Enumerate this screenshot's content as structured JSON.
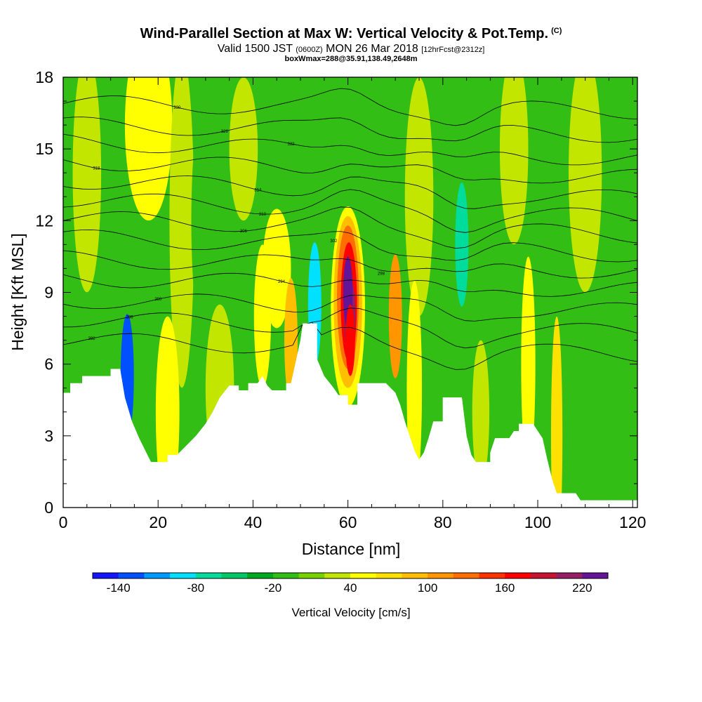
{
  "header": {
    "title": "Wind-Parallel Section at Max W: Vertical Velocity & Pot.Temp.",
    "title_mark": "(C)",
    "subtitle_a": "Valid 1500 JST",
    "subtitle_b": "(0600Z)",
    "subtitle_c": "MON 26 Mar 2018",
    "subtitle_d": "[12hrFcst@2312z]",
    "info": "boxWmax=288@35.91,138.49,2648m"
  },
  "chart_data": {
    "type": "heatmap",
    "xlabel": "Distance [nm]",
    "ylabel": "Height [Kft MSL]",
    "xlim": [
      0,
      121
    ],
    "ylim": [
      0,
      18
    ],
    "xticks": [
      0,
      20,
      40,
      60,
      80,
      100,
      120
    ],
    "yticks": [
      0,
      3,
      6,
      9,
      12,
      15,
      18
    ],
    "terrain_kft": [
      [
        0,
        4.8
      ],
      [
        1.5,
        4.8
      ],
      [
        1.5,
        5.2
      ],
      [
        4,
        5.2
      ],
      [
        4,
        5.5
      ],
      [
        10,
        5.5
      ],
      [
        10,
        5.8
      ],
      [
        12,
        5.8
      ],
      [
        13,
        4.6
      ],
      [
        14.5,
        3.6
      ],
      [
        16,
        2.9
      ],
      [
        17.5,
        2.3
      ],
      [
        18.5,
        1.9
      ],
      [
        22,
        1.9
      ],
      [
        22,
        2.2
      ],
      [
        24,
        2.2
      ],
      [
        26,
        2.6
      ],
      [
        28,
        3.0
      ],
      [
        30,
        3.5
      ],
      [
        31.5,
        4.0
      ],
      [
        33,
        4.6
      ],
      [
        35,
        5.1
      ],
      [
        37,
        5.1
      ],
      [
        37,
        4.9
      ],
      [
        39,
        4.9
      ],
      [
        39,
        5.2
      ],
      [
        41,
        5.2
      ],
      [
        42,
        5.5
      ],
      [
        43,
        5.1
      ],
      [
        44,
        4.9
      ],
      [
        47,
        4.9
      ],
      [
        47,
        5.2
      ],
      [
        48,
        5.2
      ],
      [
        49,
        6.1
      ],
      [
        50,
        7.0
      ],
      [
        50.5,
        7.7
      ],
      [
        53.5,
        7.7
      ],
      [
        53.5,
        6.2
      ],
      [
        55,
        5.5
      ],
      [
        57,
        5.0
      ],
      [
        58,
        4.7
      ],
      [
        60,
        4.7
      ],
      [
        60,
        4.3
      ],
      [
        62,
        4.3
      ],
      [
        62,
        5.2
      ],
      [
        68,
        5.2
      ],
      [
        70,
        4.8
      ],
      [
        71,
        4.3
      ],
      [
        72,
        3.6
      ],
      [
        73,
        3.0
      ],
      [
        74,
        2.4
      ],
      [
        75,
        2.0
      ],
      [
        76,
        2.3
      ],
      [
        77,
        2.9
      ],
      [
        78,
        3.6
      ],
      [
        80,
        3.6
      ],
      [
        80,
        4.6
      ],
      [
        84,
        4.6
      ],
      [
        85,
        3.0
      ],
      [
        86,
        2.2
      ],
      [
        87,
        1.9
      ],
      [
        90,
        1.9
      ],
      [
        90,
        2.3
      ],
      [
        91,
        2.9
      ],
      [
        94,
        2.9
      ],
      [
        95,
        3.2
      ],
      [
        96,
        3.2
      ],
      [
        96,
        3.5
      ],
      [
        99,
        3.5
      ],
      [
        100,
        3.2
      ],
      [
        101,
        2.9
      ],
      [
        102,
        2.0
      ],
      [
        103,
        1.2
      ],
      [
        104,
        0.6
      ],
      [
        108,
        0.6
      ],
      [
        109,
        0.3
      ],
      [
        121,
        0.3
      ]
    ],
    "colorbar": {
      "label": "Vertical Velocity [cm/s]",
      "min": -160,
      "max": 240,
      "step": 20,
      "tick_labels": [
        "-140",
        "-80",
        "-20",
        "40",
        "100",
        "160",
        "220"
      ],
      "tick_values": [
        -140,
        -80,
        -20,
        40,
        100,
        160,
        220
      ],
      "colors": [
        "#1414ff",
        "#0050ff",
        "#009bff",
        "#00e1ff",
        "#00dc9b",
        "#00c864",
        "#00aa1e",
        "#32be14",
        "#78d200",
        "#c3e600",
        "#ffff00",
        "#ffe100",
        "#ffbe00",
        "#ff9600",
        "#ff6e00",
        "#ff3200",
        "#ff0000",
        "#c81432",
        "#961e64",
        "#641496"
      ]
    },
    "velocity_features": [
      {
        "x": 60,
        "y": 9,
        "w": 222
      },
      {
        "x": 60.5,
        "y": 7,
        "w": 165
      },
      {
        "x": 53,
        "y": 8.5,
        "w": -100
      },
      {
        "x": 13.5,
        "y": 5.5,
        "w": -140
      },
      {
        "x": 84,
        "y": 11,
        "w": -80
      },
      {
        "x": 70,
        "y": 8,
        "w": 110
      },
      {
        "x": 48,
        "y": 7,
        "w": 85
      }
    ],
    "isentropes": [
      {
        "label": "330",
        "y0": 16.9,
        "y1": 16.6
      },
      {
        "label": "326",
        "y0": 16.0,
        "y1": 15.6
      },
      {
        "label": "322",
        "y0": 15.3,
        "y1": 14.6
      },
      {
        "label": "318",
        "y0": 14.5,
        "y1": 13.8
      },
      {
        "label": "314",
        "y0": 13.7,
        "y1": 12.9
      },
      {
        "label": "310",
        "y0": 12.9,
        "y1": 12.1
      },
      {
        "label": "306",
        "y0": 12.1,
        "y1": 11.4
      },
      {
        "label": "302",
        "y0": 11.3,
        "y1": 10.6
      },
      {
        "label": "298",
        "y0": 10.4,
        "y1": 9.9
      },
      {
        "label": "294",
        "y0": 9.6,
        "y1": 9.1
      },
      {
        "label": "290",
        "y0": 8.7,
        "y1": 8.2
      },
      {
        "label": "286",
        "y0": 7.9,
        "y1": 7.3
      },
      {
        "label": "282",
        "y0": 7.0,
        "y1": 6.4
      }
    ]
  }
}
